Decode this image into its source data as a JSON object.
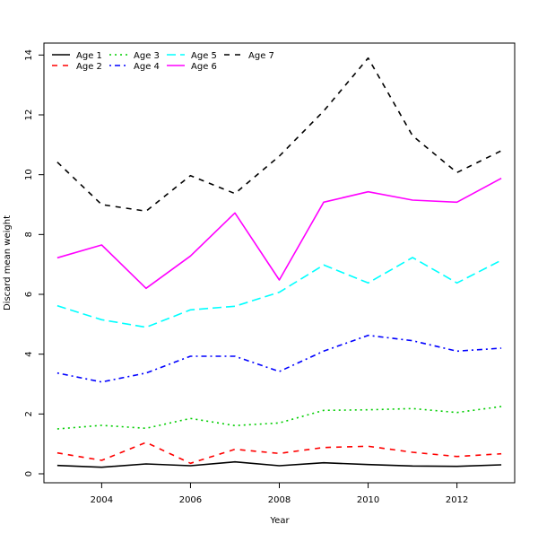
{
  "chart_data": {
    "type": "line",
    "title": "",
    "xlabel": "Year",
    "ylabel": "Discard mean weight",
    "xlim": [
      2002.7,
      2013.3
    ],
    "ylim": [
      -0.3,
      14.4
    ],
    "x_ticks": [
      2004,
      2006,
      2008,
      2010,
      2012
    ],
    "y_ticks": [
      0,
      2,
      4,
      6,
      8,
      10,
      12,
      14
    ],
    "grid": false,
    "legend_position": "top-left",
    "x": [
      2003,
      2004,
      2005,
      2006,
      2007,
      2008,
      2009,
      2010,
      2011,
      2012,
      2013
    ],
    "series": [
      {
        "name": "Age 1",
        "color": "#000000",
        "dash": "solid",
        "values": [
          0.28,
          0.22,
          0.33,
          0.27,
          0.4,
          0.27,
          0.37,
          0.31,
          0.26,
          0.25,
          0.3
        ]
      },
      {
        "name": "Age 2",
        "color": "#ff0000",
        "dash": "dashed",
        "values": [
          0.7,
          0.45,
          1.05,
          0.35,
          0.82,
          0.68,
          0.88,
          0.92,
          0.72,
          0.58,
          0.67
        ]
      },
      {
        "name": "Age 3",
        "color": "#00cd00",
        "dash": "dotted",
        "values": [
          1.5,
          1.62,
          1.52,
          1.85,
          1.61,
          1.7,
          2.12,
          2.14,
          2.18,
          2.05,
          2.25
        ]
      },
      {
        "name": "Age 4",
        "color": "#0000ff",
        "dash": "dotdash",
        "values": [
          3.37,
          3.07,
          3.37,
          3.93,
          3.93,
          3.42,
          4.1,
          4.63,
          4.45,
          4.1,
          4.2
        ]
      },
      {
        "name": "Age 5",
        "color": "#00ffff",
        "dash": "longdash",
        "values": [
          5.62,
          5.15,
          4.9,
          5.48,
          5.6,
          6.07,
          6.98,
          6.38,
          7.23,
          6.38,
          7.14
        ]
      },
      {
        "name": "Age 6",
        "color": "#ff00ff",
        "dash": "solid",
        "values": [
          7.22,
          7.65,
          6.2,
          7.28,
          8.72,
          6.48,
          9.08,
          9.43,
          9.15,
          9.08,
          9.88
        ]
      },
      {
        "name": "Age 7",
        "color": "#000000",
        "dash": "dashed",
        "values": [
          10.42,
          9.0,
          8.78,
          9.97,
          9.37,
          10.62,
          12.13,
          13.9,
          11.3,
          10.07,
          10.8
        ]
      }
    ]
  }
}
